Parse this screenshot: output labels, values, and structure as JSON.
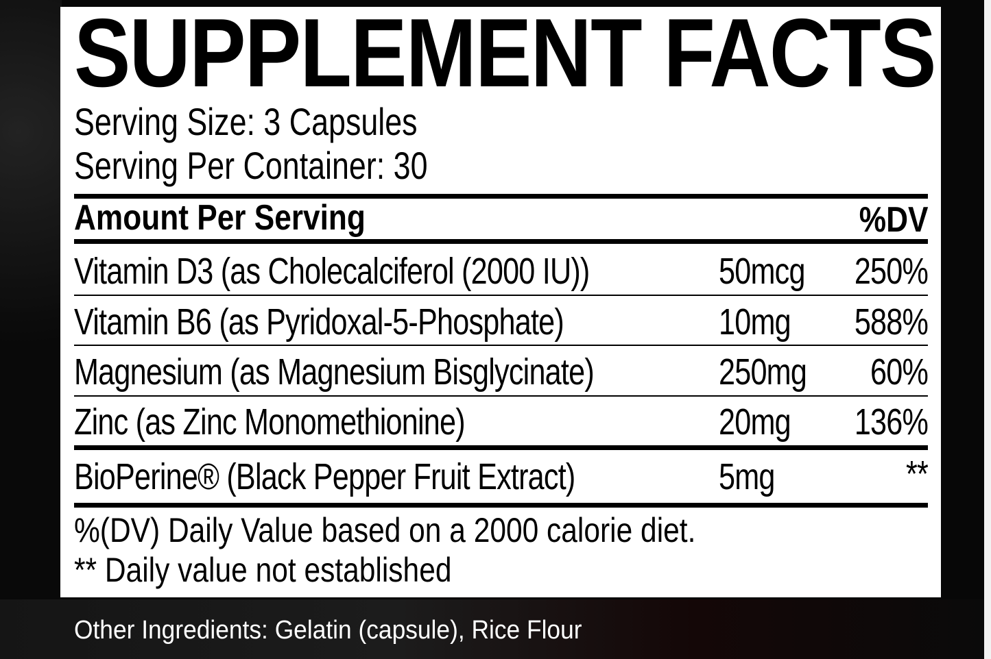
{
  "title": "SUPPLEMENT FACTS",
  "serving_size": "Serving Size: 3 Capsules",
  "servings_per_container": "Serving Per Container: 30",
  "header": {
    "amount": "Amount Per Serving",
    "dv": "%DV"
  },
  "rows": [
    {
      "name": "Vitamin D3 (as Cholecalciferol (2000 IU))",
      "amount": "50mcg",
      "dv": "250%"
    },
    {
      "name": "Vitamin B6 (as Pyridoxal-5-Phosphate)",
      "amount": "10mg",
      "dv": "588%"
    },
    {
      "name": "Magnesium (as Magnesium Bisglycinate)",
      "amount": "250mg",
      "dv": "60%"
    },
    {
      "name": "Zinc (as Zinc Monomethionine)",
      "amount": "20mg",
      "dv": "136%"
    },
    {
      "name": "BioPerine® (Black Pepper Fruit Extract)",
      "amount": "5mg",
      "dv": "**"
    }
  ],
  "footnotes": [
    "%(DV) Daily Value based on a 2000 calorie diet.",
    "** Daily value not established"
  ],
  "other_ingredients": "Other Ingredients: Gelatin (capsule), Rice Flour",
  "colors": {
    "panel": "#ffffff",
    "background": "#070707",
    "text": "#000000"
  }
}
